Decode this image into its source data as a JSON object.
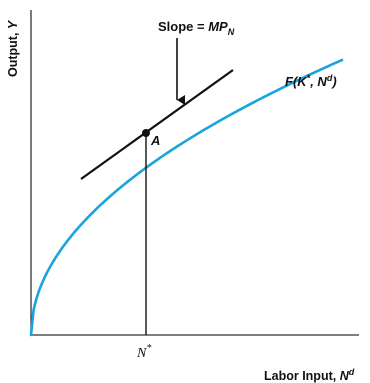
{
  "diagram": {
    "y_axis_label": {
      "main": "Output, ",
      "var": "Y"
    },
    "x_axis_label": {
      "main": "Labor Input, ",
      "var": "N",
      "sup": "d"
    },
    "slope_label": {
      "main": "Slope = ",
      "var": "MP",
      "sub": "N"
    },
    "curve_label": {
      "f": "F(",
      "k": "K",
      "k_sup": "*",
      "comma": ", ",
      "n": "N",
      "n_sup": "d",
      "close": ")"
    },
    "point_label": "A",
    "tick_label": {
      "var": "N",
      "sup": "*"
    },
    "colors": {
      "curve": "#1aa3dc",
      "axes": "#333333",
      "tangent": "#111111",
      "point": "#111111"
    }
  }
}
